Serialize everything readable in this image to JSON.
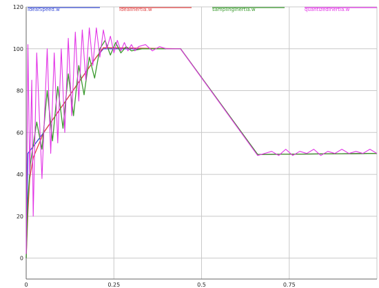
{
  "chart_data": {
    "type": "line",
    "title": "",
    "xlabel": "",
    "ylabel": "",
    "xlim": [
      0,
      1.0
    ],
    "ylim": [
      -10,
      120
    ],
    "xticks": [
      0,
      0.25,
      0.5,
      0.75
    ],
    "xtick_labels": [
      "0",
      "0.25",
      "0.5",
      "0.75"
    ],
    "yticks": [
      0,
      20,
      40,
      60,
      80,
      100,
      120
    ],
    "ytick_labels": [
      "0",
      "20",
      "40",
      "60",
      "80",
      "100",
      "120"
    ],
    "grid": true,
    "legend_position": "top",
    "series": [
      {
        "name": "idealSpeed.w",
        "color": "#3b4fd8",
        "x": [
          0,
          0.005,
          0.05,
          0.1,
          0.15,
          0.2,
          0.22,
          0.44,
          0.66,
          1.0
        ],
        "y": [
          0,
          50,
          60,
          72,
          84,
          96,
          100,
          100,
          49.5,
          50
        ]
      },
      {
        "name": "idealInertia.w",
        "color": "#e34444",
        "x": [
          0,
          0.005,
          0.01,
          0.02,
          0.05,
          0.1,
          0.15,
          0.2,
          0.22,
          0.44,
          0.66,
          1.0
        ],
        "y": [
          0,
          22,
          38,
          48,
          60,
          72,
          84,
          96,
          100.5,
          100,
          49.5,
          50
        ]
      },
      {
        "name": "samplingInertia.w",
        "color": "#3a9a2e",
        "x": [
          0,
          0.005,
          0.012,
          0.03,
          0.045,
          0.06,
          0.075,
          0.09,
          0.105,
          0.12,
          0.135,
          0.15,
          0.165,
          0.18,
          0.195,
          0.21,
          0.225,
          0.24,
          0.255,
          0.27,
          0.285,
          0.3,
          0.33,
          0.44,
          0.66,
          1.0
        ],
        "y": [
          0,
          28,
          45,
          65,
          52,
          80,
          56,
          82,
          62,
          88,
          68,
          92,
          78,
          96,
          86,
          100,
          104,
          97,
          103,
          98,
          101,
          99,
          100,
          100,
          49.5,
          50
        ]
      },
      {
        "name": "quantizedInertia.w",
        "color": "#e233e6",
        "x": [
          0,
          0.005,
          0.01,
          0.016,
          0.02,
          0.03,
          0.045,
          0.06,
          0.07,
          0.08,
          0.09,
          0.1,
          0.11,
          0.12,
          0.13,
          0.14,
          0.15,
          0.16,
          0.17,
          0.18,
          0.19,
          0.2,
          0.21,
          0.22,
          0.23,
          0.24,
          0.25,
          0.26,
          0.27,
          0.28,
          0.29,
          0.3,
          0.31,
          0.32,
          0.34,
          0.36,
          0.38,
          0.4,
          0.44,
          0.66,
          0.7,
          0.72,
          0.74,
          0.76,
          0.78,
          0.8,
          0.82,
          0.84,
          0.86,
          0.88,
          0.9,
          0.92,
          0.94,
          0.96,
          0.98,
          1.0
        ],
        "y": [
          2,
          102,
          40,
          85,
          20,
          98,
          38,
          100,
          50,
          98,
          55,
          100,
          60,
          105,
          68,
          108,
          75,
          109,
          85,
          110,
          92,
          110,
          96,
          109,
          100,
          106,
          98,
          104,
          99,
          103,
          99,
          102,
          99,
          101,
          102,
          99,
          101,
          100,
          100,
          49,
          51,
          49,
          52,
          49,
          51,
          50,
          52,
          49,
          51,
          50,
          52,
          50,
          51,
          50,
          52,
          50
        ]
      }
    ]
  }
}
